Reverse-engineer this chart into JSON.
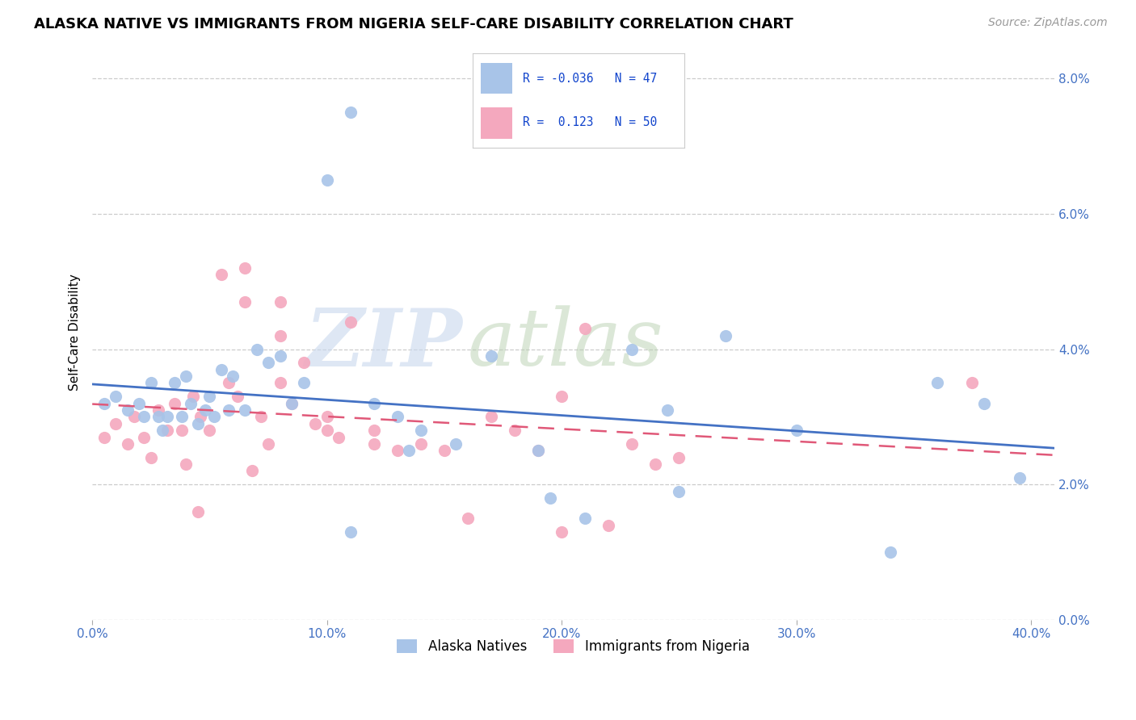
{
  "title": "ALASKA NATIVE VS IMMIGRANTS FROM NIGERIA SELF-CARE DISABILITY CORRELATION CHART",
  "source": "Source: ZipAtlas.com",
  "ylabel": "Self-Care Disability",
  "xlabel_ticks": [
    "0.0%",
    "10.0%",
    "20.0%",
    "30.0%",
    "40.0%"
  ],
  "xlabel_vals": [
    0.0,
    0.1,
    0.2,
    0.3,
    0.4
  ],
  "ylabel_ticks": [
    "0.0%",
    "2.0%",
    "4.0%",
    "6.0%",
    "8.0%"
  ],
  "ylabel_vals": [
    0.0,
    0.02,
    0.04,
    0.06,
    0.08
  ],
  "xlim": [
    0.0,
    0.41
  ],
  "ylim": [
    0.0,
    0.085
  ],
  "R_blue": -0.036,
  "N_blue": 47,
  "R_pink": 0.123,
  "N_pink": 50,
  "blue_color": "#a8c4e8",
  "pink_color": "#f4a8be",
  "blue_line_color": "#4472c4",
  "pink_line_color": "#e05878",
  "legend_labels": [
    "Alaska Natives",
    "Immigrants from Nigeria"
  ],
  "blue_scatter_x": [
    0.005,
    0.01,
    0.015,
    0.02,
    0.022,
    0.025,
    0.028,
    0.03,
    0.032,
    0.035,
    0.038,
    0.04,
    0.042,
    0.045,
    0.048,
    0.05,
    0.052,
    0.055,
    0.058,
    0.06,
    0.065,
    0.07,
    0.075,
    0.08,
    0.085,
    0.09,
    0.1,
    0.11,
    0.12,
    0.13,
    0.14,
    0.155,
    0.17,
    0.19,
    0.21,
    0.23,
    0.25,
    0.27,
    0.3,
    0.34,
    0.36,
    0.38,
    0.395,
    0.11,
    0.195,
    0.135,
    0.245
  ],
  "blue_scatter_y": [
    0.032,
    0.033,
    0.031,
    0.032,
    0.03,
    0.035,
    0.03,
    0.028,
    0.03,
    0.035,
    0.03,
    0.036,
    0.032,
    0.029,
    0.031,
    0.033,
    0.03,
    0.037,
    0.031,
    0.036,
    0.031,
    0.04,
    0.038,
    0.039,
    0.032,
    0.035,
    0.065,
    0.075,
    0.032,
    0.03,
    0.028,
    0.026,
    0.039,
    0.025,
    0.015,
    0.04,
    0.019,
    0.042,
    0.028,
    0.01,
    0.035,
    0.032,
    0.021,
    0.013,
    0.018,
    0.025,
    0.031
  ],
  "pink_scatter_x": [
    0.005,
    0.01,
    0.015,
    0.018,
    0.022,
    0.025,
    0.028,
    0.032,
    0.035,
    0.038,
    0.04,
    0.043,
    0.046,
    0.05,
    0.055,
    0.058,
    0.062,
    0.065,
    0.068,
    0.072,
    0.075,
    0.08,
    0.085,
    0.09,
    0.095,
    0.1,
    0.105,
    0.11,
    0.12,
    0.13,
    0.14,
    0.15,
    0.16,
    0.17,
    0.18,
    0.19,
    0.2,
    0.21,
    0.22,
    0.23,
    0.24,
    0.25,
    0.065,
    0.08,
    0.1,
    0.12,
    0.045,
    0.2,
    0.375,
    0.08
  ],
  "pink_scatter_y": [
    0.027,
    0.029,
    0.026,
    0.03,
    0.027,
    0.024,
    0.031,
    0.028,
    0.032,
    0.028,
    0.023,
    0.033,
    0.03,
    0.028,
    0.051,
    0.035,
    0.033,
    0.047,
    0.022,
    0.03,
    0.026,
    0.035,
    0.032,
    0.038,
    0.029,
    0.028,
    0.027,
    0.044,
    0.028,
    0.025,
    0.026,
    0.025,
    0.015,
    0.03,
    0.028,
    0.025,
    0.033,
    0.043,
    0.014,
    0.026,
    0.023,
    0.024,
    0.052,
    0.047,
    0.03,
    0.026,
    0.016,
    0.013,
    0.035,
    0.042
  ]
}
